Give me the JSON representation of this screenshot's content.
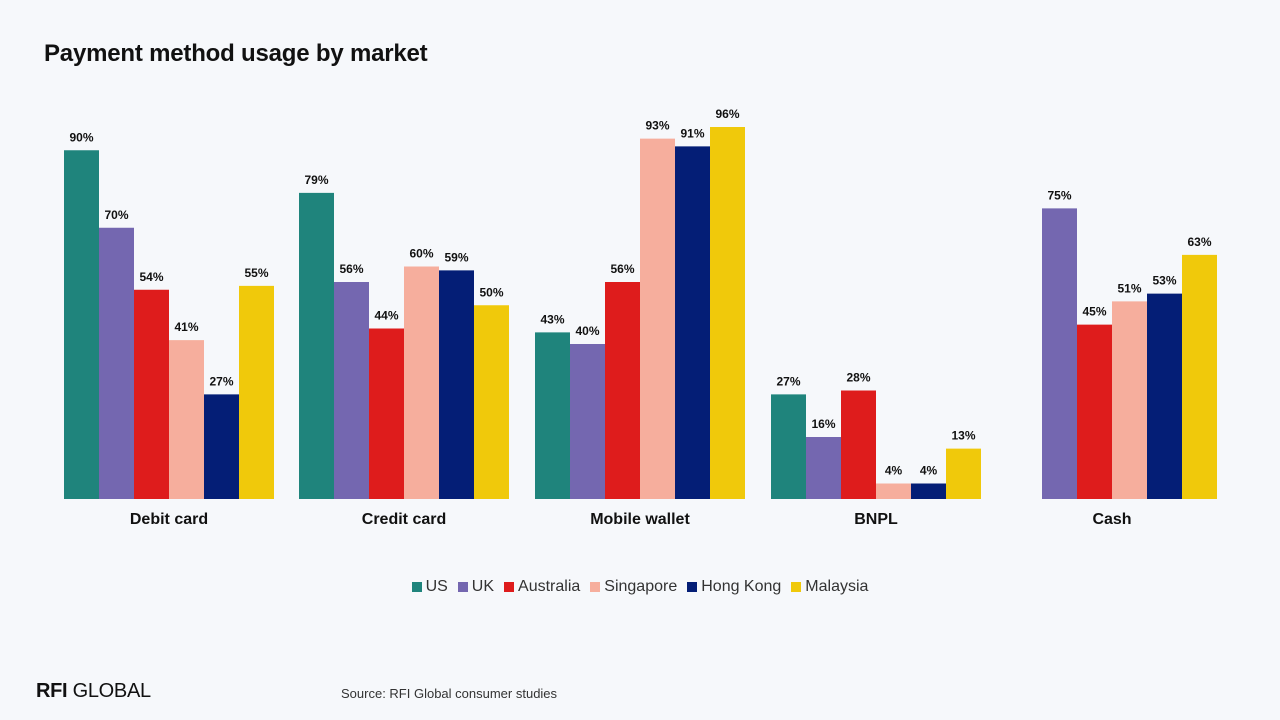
{
  "chart_data": {
    "type": "bar",
    "title": "Payment method usage by market",
    "categories": [
      "Debit card",
      "Credit card",
      "Mobile wallet",
      "BNPL",
      "Cash"
    ],
    "series": [
      {
        "name": "US",
        "color": "#1f847c",
        "values": [
          90,
          79,
          43,
          27,
          null
        ],
        "labels": [
          "90%",
          "79%",
          "43%",
          "27%",
          ""
        ]
      },
      {
        "name": "UK",
        "color": "#7467b0",
        "values": [
          70,
          56,
          40,
          16,
          75
        ],
        "labels": [
          "70%",
          "56%",
          "40%",
          "16%",
          "75%"
        ]
      },
      {
        "name": "Australia",
        "color": "#de1c1c",
        "values": [
          54,
          44,
          56,
          28,
          45
        ],
        "labels": [
          "54%",
          "44%",
          "56%",
          "28%",
          "45%"
        ]
      },
      {
        "name": "Singapore",
        "color": "#f6ae9d",
        "values": [
          41,
          60,
          93,
          4,
          51
        ],
        "labels": [
          "41%",
          "60%",
          "93%",
          "4%",
          "51%"
        ]
      },
      {
        "name": "Hong Kong",
        "color": "#041e76",
        "values": [
          27,
          59,
          91,
          4,
          53
        ],
        "labels": [
          "27%",
          "59%",
          "91%",
          "4%",
          "53%"
        ]
      },
      {
        "name": "Malaysia",
        "color": "#f0c90b",
        "values": [
          55,
          50,
          96,
          13,
          63
        ],
        "labels": [
          "55%",
          "50%",
          "96%",
          "13%",
          "63%"
        ]
      }
    ],
    "ylim": [
      0,
      100
    ],
    "grid": false,
    "legend_position": "bottom-center"
  },
  "legend": {
    "items": [
      {
        "label": "US",
        "color": "#1f847c"
      },
      {
        "label": "UK",
        "color": "#7467b0"
      },
      {
        "label": "Australia",
        "color": "#de1c1c"
      },
      {
        "label": "Singapore",
        "color": "#f6ae9d"
      },
      {
        "label": "Hong Kong",
        "color": "#041e76"
      },
      {
        "label": "Malaysia",
        "color": "#f0c90b"
      }
    ]
  },
  "footer": {
    "logo_strong": "RFI",
    "logo_rest": " GLOBAL",
    "source": "Source: RFI Global consumer studies"
  },
  "colors": {
    "background": "#f6f8fb",
    "text": "#111111",
    "baseline": "#1f847c"
  }
}
